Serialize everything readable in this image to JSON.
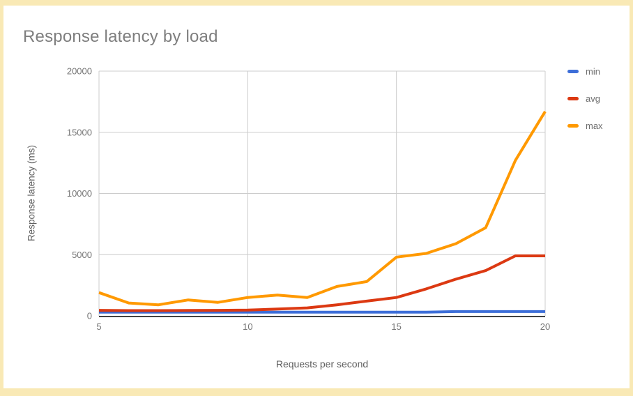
{
  "frame": {
    "border_color": "#F9E9B5",
    "panel_color": "#FFFFFF"
  },
  "chart_data": {
    "type": "line",
    "title": "Response latency by load",
    "xlabel": "Requests per second",
    "ylabel": "Response latency (ms)",
    "x": [
      5,
      6,
      7,
      8,
      9,
      10,
      11,
      12,
      13,
      14,
      15,
      16,
      17,
      18,
      19,
      20
    ],
    "series": [
      {
        "name": "min",
        "color": "#3D6ED8",
        "values": [
          300,
          300,
          300,
          300,
          300,
          300,
          300,
          300,
          300,
          300,
          300,
          300,
          350,
          350,
          350,
          350
        ]
      },
      {
        "name": "avg",
        "color": "#DC3912",
        "values": [
          450,
          430,
          430,
          440,
          450,
          470,
          550,
          650,
          900,
          1200,
          1500,
          2200,
          3000,
          3700,
          4900,
          4900
        ]
      },
      {
        "name": "max",
        "color": "#FF9900",
        "values": [
          1900,
          1050,
          900,
          1300,
          1100,
          1500,
          1700,
          1500,
          2400,
          2800,
          4800,
          5100,
          5900,
          7200,
          12700,
          16700
        ]
      }
    ],
    "xlim": [
      5,
      20
    ],
    "ylim": [
      0,
      20000
    ],
    "xticks": [
      5,
      10,
      15,
      20
    ],
    "yticks": [
      0,
      5000,
      10000,
      15000,
      20000
    ],
    "grid": true,
    "legend_position": "right",
    "grid_color": "#CCCCCC",
    "baseline_color": "#424242",
    "tick_label_color": "#757575"
  }
}
